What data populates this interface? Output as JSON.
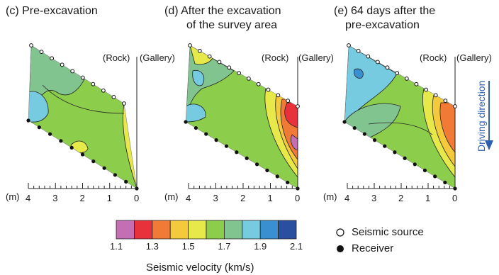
{
  "panels": [
    {
      "id": "c",
      "title_lines": [
        "(c) Pre-excavation"
      ],
      "labels": {
        "rock": "",
        "gallery": ""
      }
    },
    {
      "id": "d",
      "title_lines": [
        "(d) After the excavation",
        "of the survey area"
      ],
      "labels": {
        "rock": "(Rock)",
        "gallery": "(Gallery)"
      }
    },
    {
      "id": "e",
      "title_lines": [
        "(e) 64 days after the",
        "pre-excavation"
      ],
      "labels": {
        "rock": "(Rock)",
        "gallery": "(Gallery)"
      }
    }
  ],
  "rock_label_c": "(Rock)",
  "gallery_label_c": "(Gallery)",
  "axis": {
    "unit": "(m)",
    "ticks": [
      "4",
      "3",
      "2",
      "1",
      "0"
    ]
  },
  "colorbar": {
    "colors": [
      "#c46fb4",
      "#e8323b",
      "#f07a36",
      "#f4c93b",
      "#e7e84a",
      "#8ccd4c",
      "#82c48f",
      "#76cbe0",
      "#3a8fd0",
      "#2b4fa0"
    ],
    "tick_labels": [
      "1.1",
      "1.3",
      "1.5",
      "1.7",
      "1.9",
      "2.1"
    ],
    "title": "Seismic velocity (km/s)"
  },
  "legend": {
    "source": "Seismic source",
    "receiver": "Receiver"
  },
  "driving_direction": "Driving direction"
}
